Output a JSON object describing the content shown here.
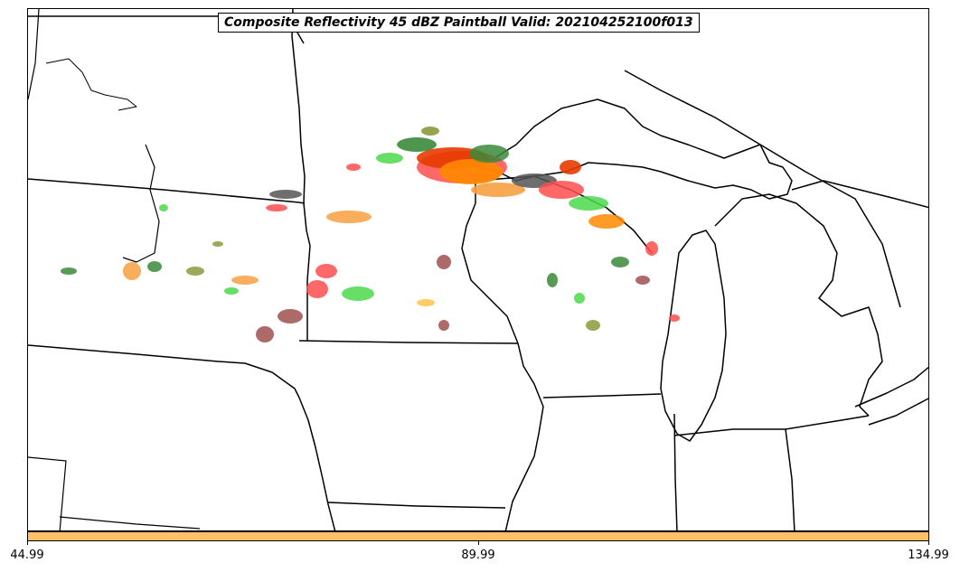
{
  "title": "Composite Reflectivity 45 dBZ Paintball Valid: 202104252100f013",
  "colorbar": {
    "color": "#ffc066",
    "ticks": [
      "44.99",
      "89.99",
      "134.99"
    ]
  },
  "map": {
    "region": "Upper Midwest / Great Lakes",
    "boundaries": [
      "coastlines",
      "state borders",
      "country border"
    ],
    "paintball_colors": [
      "#ff4d4d",
      "#e83a00",
      "#ff8a00",
      "#f7a040",
      "#ffc34d",
      "#4cd94c",
      "#3b8a3b",
      "#8a9a3b",
      "#a04f4f",
      "#555555"
    ]
  }
}
